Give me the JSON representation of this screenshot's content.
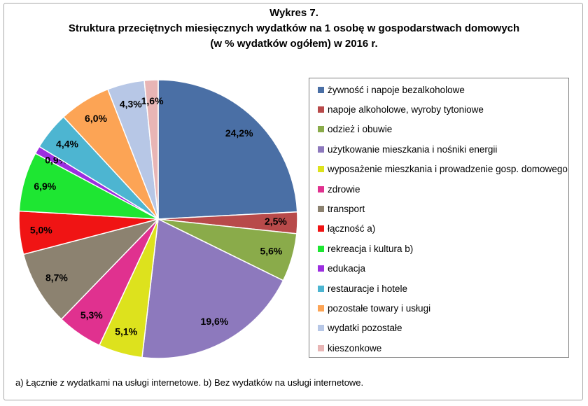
{
  "title": {
    "line1": "Wykres 7.",
    "line2": "Struktura przeciętnych miesięcznych wydatków na 1 osobę w gospodarstwach domowych",
    "line3": "(w % wydatków ogółem) w 2016 r."
  },
  "footnote": "a) Łącznie z wydatkami na usługi internetowe. b) Bez wydatków na usługi internetowe.",
  "chart_data": {
    "type": "pie",
    "title": "Struktura przeciętnych miesięcznych wydatków na 1 osobę w gospodarstwach domowych (w % wydatków ogółem) w 2016 r.",
    "start_angle": "12 o'clock, clockwise",
    "legend_position": "right",
    "slices": [
      {
        "label": "żywność i napoje bezalkoholowe",
        "value": 24.2,
        "display": "24,2%",
        "color": "#4a6fa5"
      },
      {
        "label": "napoje alkoholowe, wyroby tytoniowe",
        "value": 2.5,
        "display": "2,5%",
        "color": "#b84a4a"
      },
      {
        "label": "odzież i obuwie",
        "value": 5.6,
        "display": "5,6%",
        "color": "#8aab4a"
      },
      {
        "label": "użytkowanie mieszkania i nośniki energii",
        "value": 19.6,
        "display": "19,6%",
        "color": "#8d79bd"
      },
      {
        "label": "wyposażenie mieszkania i prowadzenie gosp. domowego",
        "value": 5.1,
        "display": "5,1%",
        "color": "#dde21d"
      },
      {
        "label": "zdrowie",
        "value": 5.3,
        "display": "5,3%",
        "color": "#e0318f"
      },
      {
        "label": "transport",
        "value": 8.7,
        "display": "8,7%",
        "color": "#8c8270"
      },
      {
        "label": "łączność a)",
        "value": 5.0,
        "display": "5,0%",
        "color": "#f01414"
      },
      {
        "label": "rekreacja i kultura b)",
        "value": 6.9,
        "display": "6,9%",
        "color": "#1ee632"
      },
      {
        "label": "edukacja",
        "value": 0.9,
        "display": "0,9%",
        "color": "#9c2ee0"
      },
      {
        "label": "restauracje i hotele",
        "value": 4.4,
        "display": "4,4%",
        "color": "#4db5d1"
      },
      {
        "label": "pozostałe towary i usługi",
        "value": 6.0,
        "display": "6,0%",
        "color": "#fca455"
      },
      {
        "label": "wydatki pozostałe",
        "value": 4.3,
        "display": "4,3%",
        "color": "#b7c7e6"
      },
      {
        "label": "kieszonkowe",
        "value": 1.6,
        "display": "1,6%",
        "color": "#e8b5b5"
      }
    ]
  }
}
